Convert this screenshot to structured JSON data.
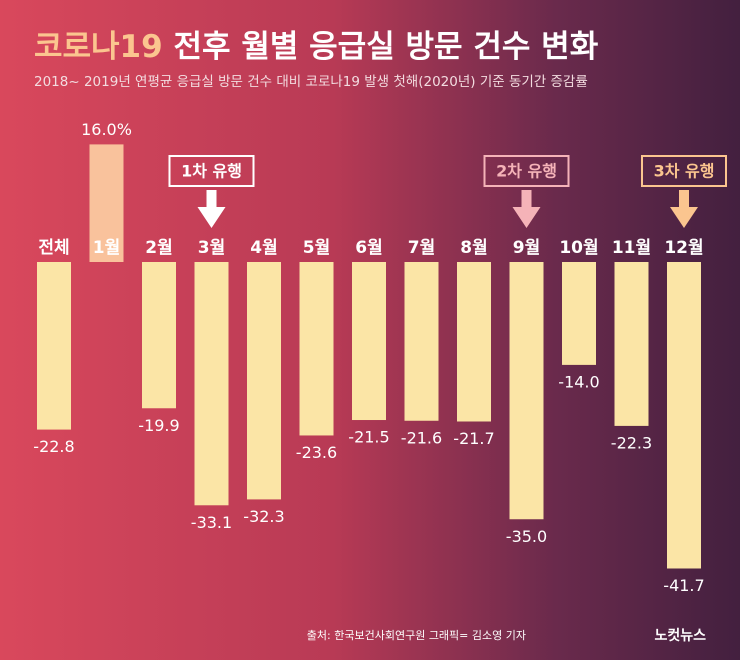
{
  "chart_data": {
    "type": "bar",
    "title": "코로나19 전후 월별 응급실 방문 건수 변화",
    "subtitle": "2018~ 2019년 연평균 응급실 방문 건수 대비 코로나19 발생 첫해(2020년) 기준 동기간 증감률",
    "categories": [
      "전체",
      "1월",
      "2월",
      "3월",
      "4월",
      "5월",
      "6월",
      "7월",
      "8월",
      "9월",
      "10월",
      "11월",
      "12월"
    ],
    "values": [
      -22.8,
      16.0,
      -19.9,
      -33.1,
      -32.3,
      -23.6,
      -21.5,
      -21.6,
      -21.7,
      -35.0,
      -14.0,
      -22.3,
      -41.7
    ],
    "value_labels": [
      "-22.8",
      "16.0%",
      "-19.9",
      "-33.1",
      "-32.3",
      "-23.6",
      "-21.5",
      "-21.6",
      "-21.7",
      "-35.0",
      "-14.0",
      "-22.3",
      "-41.7"
    ],
    "color": "#fbe5a6",
    "positive_color": "#f9c29c",
    "annotations": [
      "1차 유행",
      "2차 유행",
      "3차 유행"
    ],
    "source": "출처: 한국보건사회연구원  그래픽= 김소영 기자",
    "logo": "노컷뉴스"
  }
}
